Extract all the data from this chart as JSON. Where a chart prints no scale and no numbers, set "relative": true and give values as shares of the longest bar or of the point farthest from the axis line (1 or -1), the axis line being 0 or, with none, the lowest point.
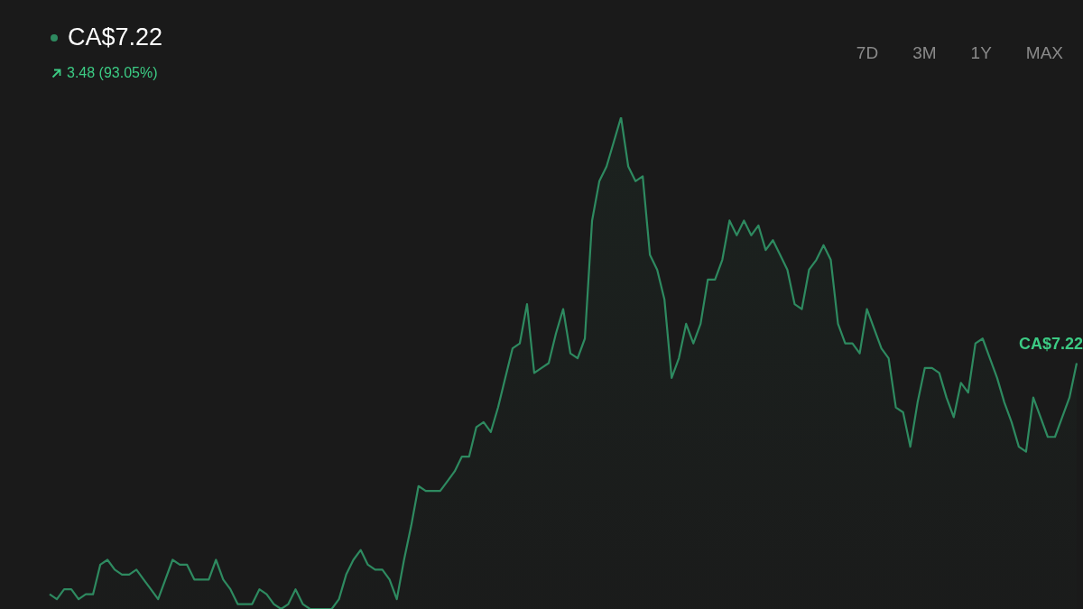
{
  "chart_data": {
    "type": "area",
    "title": "CA$7.22",
    "subtitle": "3.48 (93.05%)",
    "relative": true,
    "tick_labels": false,
    "categories": [
      null,
      null,
      null,
      null,
      null,
      null,
      null,
      null,
      null,
      null,
      null,
      null,
      null,
      null,
      null,
      null,
      null,
      null,
      null,
      null,
      null,
      null,
      null,
      null,
      null,
      null,
      null,
      null,
      null,
      null,
      null,
      null,
      null,
      null,
      null,
      null,
      null,
      null,
      null,
      null,
      null,
      null,
      null,
      null,
      null,
      null,
      null,
      null,
      null,
      null,
      null,
      null,
      null,
      null,
      null,
      null,
      null,
      null,
      null,
      null,
      null,
      null,
      null,
      null,
      null,
      null,
      null,
      null,
      null,
      null,
      null,
      null,
      null,
      null,
      null,
      null,
      null,
      null,
      null,
      null,
      null,
      null,
      null,
      null,
      null,
      null,
      null,
      null,
      null,
      null,
      null,
      null,
      null,
      null,
      null,
      null,
      null,
      null,
      null,
      null,
      null,
      null,
      null,
      null,
      null,
      null,
      null,
      null,
      null,
      null,
      null,
      null,
      null,
      null,
      null,
      null,
      null,
      null,
      null,
      null,
      null,
      null,
      null,
      null,
      null,
      null,
      null,
      null,
      null,
      null,
      null,
      null,
      null,
      null,
      null,
      null,
      null,
      null,
      null,
      null,
      null,
      null,
      null
    ],
    "series": [
      {
        "color": "#2e8a60",
        "values": [
          0.03,
          0.02,
          0.04,
          0.04,
          0.02,
          0.03,
          0.03,
          0.09,
          0.1,
          0.08,
          0.07,
          0.07,
          0.08,
          0.06,
          0.04,
          0.02,
          0.06,
          0.1,
          0.09,
          0.09,
          0.06,
          0.06,
          0.06,
          0.1,
          0.06,
          0.04,
          0.01,
          0.01,
          0.01,
          0.04,
          0.03,
          0.01,
          0,
          0.01,
          0.04,
          0.01,
          0,
          0,
          0,
          0,
          0.02,
          0.07,
          0.1,
          0.12,
          0.09,
          0.08,
          0.08,
          0.06,
          0.02,
          0.1,
          0.17,
          0.25,
          0.24,
          0.24,
          0.24,
          0.26,
          0.28,
          0.31,
          0.31,
          0.37,
          0.38,
          0.36,
          0.41,
          0.47,
          0.53,
          0.54,
          0.62,
          0.48,
          0.49,
          0.5,
          0.56,
          0.61,
          0.52,
          0.51,
          0.55,
          0.79,
          0.87,
          0.9,
          0.95,
          1,
          0.9,
          0.87,
          0.88,
          0.72,
          0.69,
          0.63,
          0.47,
          0.51,
          0.58,
          0.54,
          0.58,
          0.67,
          0.67,
          0.71,
          0.79,
          0.76,
          0.79,
          0.76,
          0.78,
          0.73,
          0.75,
          0.72,
          0.69,
          0.62,
          0.61,
          0.69,
          0.71,
          0.74,
          0.71,
          0.58,
          0.54,
          0.54,
          0.52,
          0.61,
          0.57,
          0.53,
          0.51,
          0.41,
          0.4,
          0.33,
          0.42,
          0.49,
          0.49,
          0.48,
          0.43,
          0.39,
          0.46,
          0.44,
          0.54,
          0.55,
          0.51,
          0.47,
          0.42,
          0.38,
          0.33,
          0.32,
          0.43,
          0.39,
          0.35,
          0.35,
          0.39,
          0.43,
          0.5
        ]
      }
    ],
    "annotations": [
      "7D",
      "3M",
      "1Y",
      "MAX",
      "CA$7.22"
    ]
  }
}
